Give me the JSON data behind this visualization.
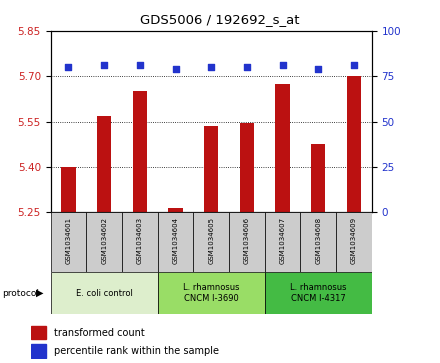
{
  "title": "GDS5006 / 192692_s_at",
  "samples": [
    "GSM1034601",
    "GSM1034602",
    "GSM1034603",
    "GSM1034604",
    "GSM1034605",
    "GSM1034606",
    "GSM1034607",
    "GSM1034608",
    "GSM1034609"
  ],
  "transformed_counts": [
    5.4,
    5.57,
    5.65,
    5.265,
    5.535,
    5.545,
    5.675,
    5.475,
    5.7
  ],
  "percentile_ranks": [
    80,
    81,
    81,
    79,
    80,
    80,
    81,
    79,
    81
  ],
  "ylim_left": [
    5.25,
    5.85
  ],
  "ylim_right": [
    0,
    100
  ],
  "yticks_left": [
    5.25,
    5.4,
    5.55,
    5.7,
    5.85
  ],
  "yticks_right": [
    0,
    25,
    50,
    75,
    100
  ],
  "bar_color": "#BB1111",
  "dot_color": "#2233CC",
  "group_colors": [
    "#ddeecc",
    "#99dd66",
    "#44bb44"
  ],
  "group_labels": [
    "E. coli control",
    "L. rhamnosus\nCNCM I-3690",
    "L. rhamnosus\nCNCM I-4317"
  ],
  "group_ranges": [
    [
      0,
      3
    ],
    [
      3,
      6
    ],
    [
      6,
      9
    ]
  ],
  "protocol_label": "protocol",
  "legend_bar_label": "transformed count",
  "legend_dot_label": "percentile rank within the sample",
  "axis_label_color_left": "#CC2222",
  "axis_label_color_right": "#2233CC",
  "sample_box_color": "#cccccc",
  "bar_bottom": 5.25
}
